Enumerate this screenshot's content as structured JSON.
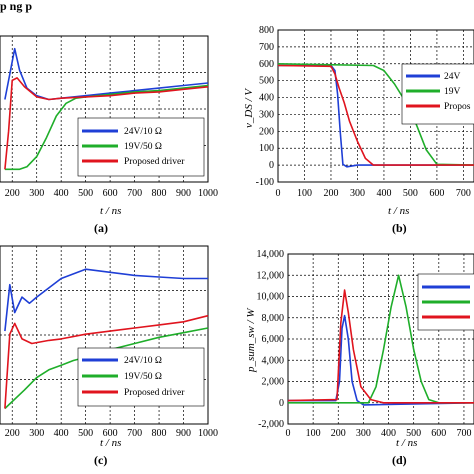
{
  "header_fragment": "p          ng                    p",
  "legend": {
    "series": [
      {
        "name": "24V/10 Ω",
        "color": "#1f3fd6"
      },
      {
        "name": "19V/50 Ω",
        "color": "#1fae2a"
      },
      {
        "name": "Proposed driver",
        "color": "#e0141e"
      }
    ],
    "short_b": [
      "24V",
      "19V",
      "Propos"
    ]
  },
  "chart_data": [
    {
      "panel": "(a)",
      "type": "line",
      "xlabel": "t / ns",
      "ylabel": "",
      "x_ticks": [
        "200",
        "300",
        "400",
        "500",
        "600",
        "700",
        "800",
        "900",
        "1000"
      ],
      "xlim": [
        150,
        1000
      ],
      "series": [
        {
          "name": "24V/10 Ω",
          "x": [
            170,
            190,
            210,
            230,
            260,
            300,
            350,
            400,
            500,
            600,
            700,
            800,
            900,
            1000
          ],
          "values": [
            0.55,
            0.75,
            0.95,
            0.78,
            0.64,
            0.58,
            0.55,
            0.56,
            0.58,
            0.6,
            0.62,
            0.64,
            0.66,
            0.68
          ]
        },
        {
          "name": "19V/50 Ω",
          "x": [
            170,
            230,
            260,
            300,
            340,
            380,
            420,
            460,
            500,
            600,
            700,
            800,
            900,
            1000
          ],
          "values": [
            0.0,
            0.0,
            0.02,
            0.1,
            0.25,
            0.42,
            0.52,
            0.56,
            0.57,
            0.59,
            0.61,
            0.62,
            0.64,
            0.66
          ]
        },
        {
          "name": "Proposed driver",
          "x": [
            170,
            185,
            200,
            220,
            250,
            300,
            350,
            400,
            500,
            600,
            700,
            800,
            900,
            1000
          ],
          "values": [
            0.0,
            0.3,
            0.7,
            0.72,
            0.65,
            0.57,
            0.55,
            0.56,
            0.57,
            0.58,
            0.6,
            0.61,
            0.63,
            0.65
          ]
        }
      ]
    },
    {
      "panel": "(b)",
      "type": "line",
      "xlabel": "t / ns",
      "ylabel": "v_DS / V",
      "x_ticks": [
        "0",
        "100",
        "200",
        "300",
        "400",
        "500",
        "600",
        "700"
      ],
      "y_ticks": [
        "800",
        "700",
        "600",
        "500",
        "400",
        "300",
        "200",
        "100",
        "0",
        "-100"
      ],
      "xlim": [
        0,
        740
      ],
      "ylim": [
        -100,
        800
      ],
      "series": [
        {
          "name": "24V/10 Ω",
          "x": [
            0,
            200,
            215,
            225,
            235,
            245,
            260,
            300,
            740
          ],
          "values": [
            590,
            590,
            560,
            420,
            200,
            5,
            -10,
            0,
            0
          ]
        },
        {
          "name": "19V/50 Ω",
          "x": [
            0,
            360,
            400,
            440,
            480,
            520,
            560,
            600,
            740
          ],
          "values": [
            600,
            590,
            560,
            480,
            380,
            250,
            90,
            5,
            0
          ]
        },
        {
          "name": "Proposed driver",
          "x": [
            0,
            200,
            215,
            230,
            250,
            270,
            300,
            330,
            360,
            740
          ],
          "values": [
            590,
            585,
            540,
            460,
            370,
            260,
            140,
            40,
            0,
            0
          ]
        }
      ]
    },
    {
      "panel": "(c)",
      "type": "line",
      "xlabel": "t / ns",
      "ylabel": "",
      "x_ticks": [
        "200",
        "300",
        "400",
        "500",
        "600",
        "700",
        "800",
        "900",
        "1000"
      ],
      "xlim": [
        150,
        1000
      ],
      "series": [
        {
          "name": "24V/10 Ω",
          "x": [
            170,
            190,
            210,
            240,
            270,
            300,
            400,
            500,
            600,
            700,
            800,
            900,
            1000
          ],
          "values": [
            0.5,
            0.8,
            0.62,
            0.72,
            0.68,
            0.72,
            0.84,
            0.9,
            0.88,
            0.86,
            0.85,
            0.84,
            0.84
          ]
        },
        {
          "name": "19V/50 Ω",
          "x": [
            170,
            250,
            300,
            350,
            400,
            450,
            500,
            600,
            700,
            800,
            900,
            1000
          ],
          "values": [
            0.0,
            0.12,
            0.2,
            0.25,
            0.28,
            0.31,
            0.33,
            0.38,
            0.42,
            0.46,
            0.49,
            0.52
          ]
        },
        {
          "name": "Proposed driver",
          "x": [
            170,
            190,
            210,
            240,
            280,
            350,
            400,
            500,
            600,
            700,
            800,
            900,
            1000
          ],
          "values": [
            0.0,
            0.48,
            0.55,
            0.45,
            0.42,
            0.44,
            0.45,
            0.48,
            0.5,
            0.52,
            0.54,
            0.56,
            0.6
          ]
        }
      ]
    },
    {
      "panel": "(d)",
      "type": "line",
      "xlabel": "t / ns",
      "ylabel": "p_sum_sw / W",
      "x_ticks": [
        "0",
        "100",
        "200",
        "300",
        "400",
        "500",
        "600",
        "700"
      ],
      "y_ticks": [
        "14,000",
        "12,000",
        "10,000",
        "8,000",
        "6,000",
        "4,000",
        "2,000",
        "0",
        "-2,000"
      ],
      "xlim": [
        0,
        740
      ],
      "ylim": [
        -2000,
        14000
      ],
      "series": [
        {
          "name": "24V/10 Ω",
          "x": [
            0,
            190,
            205,
            215,
            225,
            240,
            255,
            275,
            300,
            740
          ],
          "values": [
            200,
            200,
            2000,
            7000,
            8200,
            6000,
            2000,
            200,
            -200,
            0
          ]
        },
        {
          "name": "19V/50 Ω",
          "x": [
            0,
            320,
            350,
            380,
            410,
            440,
            470,
            500,
            530,
            560,
            600,
            740
          ],
          "values": [
            0,
            0,
            1500,
            5000,
            9000,
            12000,
            9000,
            5000,
            2000,
            300,
            0,
            0
          ]
        },
        {
          "name": "Proposed driver",
          "x": [
            0,
            195,
            210,
            225,
            240,
            260,
            290,
            330,
            380,
            740
          ],
          "values": [
            200,
            300,
            7500,
            10600,
            8500,
            5000,
            1500,
            300,
            0,
            0
          ]
        }
      ]
    }
  ]
}
